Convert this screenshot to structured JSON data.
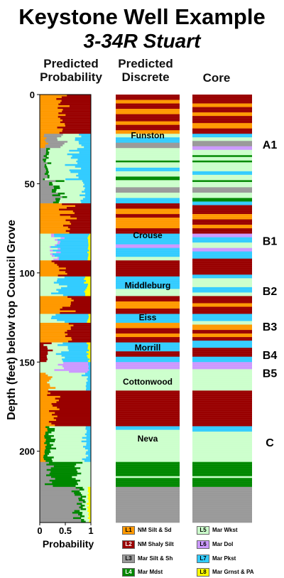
{
  "title": "Keystone Well Example",
  "subtitle": "3-34R Stuart",
  "chart_data": {
    "type": "strip-log",
    "y_label": "Depth (feet) below top Council Grove",
    "y_ticks": [
      0,
      50,
      100,
      150,
      200
    ],
    "y_range": [
      0,
      240
    ],
    "x_label": "Probability",
    "x_ticks": [
      "0",
      "0.5",
      "1"
    ],
    "x_range": [
      0,
      1
    ],
    "columns": [
      "Predicted Probability",
      "Predicted Discrete",
      "Core"
    ],
    "classes": [
      {
        "code": "L1",
        "name": "NM Silt & Sd",
        "color": "#FF9900",
        "text_color": "#000000"
      },
      {
        "code": "L2",
        "name": "NM Shaly Silt",
        "color": "#990000",
        "text_color": "#FFFFFF"
      },
      {
        "code": "L3",
        "name": "Mar Silt & Sh",
        "color": "#999999",
        "text_color": "#000000"
      },
      {
        "code": "L4",
        "name": "Mar Mdst",
        "color": "#008800",
        "text_color": "#FFFFFF"
      },
      {
        "code": "L5",
        "name": "Mar Wkst",
        "color": "#CCFFCC",
        "text_color": "#000000"
      },
      {
        "code": "L6",
        "name": "Mar Dol",
        "color": "#CC99FF",
        "text_color": "#000000"
      },
      {
        "code": "L7",
        "name": "Mar Pkst",
        "color": "#33CCFF",
        "text_color": "#000000"
      },
      {
        "code": "L8",
        "name": "Mar Grnst & PA",
        "color": "#FFFF00",
        "text_color": "#000000"
      }
    ],
    "formations": [
      {
        "name": "Funston",
        "depth": 23
      },
      {
        "name": "Crouse",
        "depth": 79
      },
      {
        "name": "Middleburg",
        "depth": 107
      },
      {
        "name": "Eiss",
        "depth": 125
      },
      {
        "name": "Morrill",
        "depth": 142
      },
      {
        "name": "Cottonwood",
        "depth": 161
      },
      {
        "name": "Neva",
        "depth": 193
      }
    ],
    "zones": [
      {
        "label": "A1",
        "depth": 28
      },
      {
        "label": "B1",
        "depth": 82
      },
      {
        "label": "B2",
        "depth": 110
      },
      {
        "label": "B3",
        "depth": 130
      },
      {
        "label": "B4",
        "depth": 146
      },
      {
        "label": "B5",
        "depth": 156
      },
      {
        "label": "C",
        "depth": 195
      }
    ],
    "discrete_intervals": [
      {
        "top": 0,
        "base": 3,
        "class": "L2"
      },
      {
        "top": 3,
        "base": 5,
        "class": "L1"
      },
      {
        "top": 5,
        "base": 8,
        "class": "L2"
      },
      {
        "top": 8,
        "base": 11,
        "class": "L1"
      },
      {
        "top": 11,
        "base": 15,
        "class": "L2"
      },
      {
        "top": 15,
        "base": 17,
        "class": "L1"
      },
      {
        "top": 17,
        "base": 20,
        "class": "L2"
      },
      {
        "top": 20,
        "base": 22,
        "class": "L1"
      },
      {
        "top": 22,
        "base": 24,
        "class": "L5"
      },
      {
        "top": 24,
        "base": 27,
        "class": "L7"
      },
      {
        "top": 27,
        "base": 30,
        "class": "L3"
      },
      {
        "top": 30,
        "base": 37,
        "class": "L5"
      },
      {
        "top": 37,
        "base": 38,
        "class": "L4"
      },
      {
        "top": 38,
        "base": 41,
        "class": "L5"
      },
      {
        "top": 41,
        "base": 43,
        "class": "L7"
      },
      {
        "top": 43,
        "base": 46,
        "class": "L5"
      },
      {
        "top": 46,
        "base": 48,
        "class": "L4"
      },
      {
        "top": 48,
        "base": 52,
        "class": "L5"
      },
      {
        "top": 52,
        "base": 55,
        "class": "L3"
      },
      {
        "top": 55,
        "base": 58,
        "class": "L5"
      },
      {
        "top": 58,
        "base": 61,
        "class": "L7"
      },
      {
        "top": 61,
        "base": 64,
        "class": "L2"
      },
      {
        "top": 64,
        "base": 67,
        "class": "L1"
      },
      {
        "top": 67,
        "base": 69,
        "class": "L2"
      },
      {
        "top": 69,
        "base": 75,
        "class": "L1"
      },
      {
        "top": 75,
        "base": 78,
        "class": "L2"
      },
      {
        "top": 78,
        "base": 84,
        "class": "L7"
      },
      {
        "top": 84,
        "base": 86,
        "class": "L6"
      },
      {
        "top": 86,
        "base": 91,
        "class": "L7"
      },
      {
        "top": 91,
        "base": 93,
        "class": "L5"
      },
      {
        "top": 93,
        "base": 102,
        "class": "L2"
      },
      {
        "top": 102,
        "base": 106,
        "class": "L7"
      },
      {
        "top": 106,
        "base": 109,
        "class": "L7"
      },
      {
        "top": 109,
        "base": 113,
        "class": "L5"
      },
      {
        "top": 113,
        "base": 116,
        "class": "L2"
      },
      {
        "top": 116,
        "base": 120,
        "class": "L1"
      },
      {
        "top": 120,
        "base": 123,
        "class": "L2"
      },
      {
        "top": 123,
        "base": 128,
        "class": "L7"
      },
      {
        "top": 128,
        "base": 131,
        "class": "L1"
      },
      {
        "top": 131,
        "base": 134,
        "class": "L2"
      },
      {
        "top": 134,
        "base": 136,
        "class": "L1"
      },
      {
        "top": 136,
        "base": 139,
        "class": "L2"
      },
      {
        "top": 139,
        "base": 144,
        "class": "L7"
      },
      {
        "top": 144,
        "base": 147,
        "class": "L2"
      },
      {
        "top": 147,
        "base": 150,
        "class": "L7"
      },
      {
        "top": 150,
        "base": 154,
        "class": "L6"
      },
      {
        "top": 154,
        "base": 156,
        "class": "L5"
      },
      {
        "top": 156,
        "base": 166,
        "class": "L5"
      },
      {
        "top": 166,
        "base": 186,
        "class": "L2"
      },
      {
        "top": 186,
        "base": 188,
        "class": "L7"
      },
      {
        "top": 188,
        "base": 206,
        "class": "L5"
      },
      {
        "top": 206,
        "base": 214,
        "class": "L4"
      },
      {
        "top": 214,
        "base": 215,
        "class": "L5"
      },
      {
        "top": 215,
        "base": 220,
        "class": "L4"
      },
      {
        "top": 220,
        "base": 240,
        "class": "L3"
      }
    ],
    "core_intervals": [
      {
        "top": 0,
        "base": 5,
        "class": "L2"
      },
      {
        "top": 5,
        "base": 7,
        "class": "L1"
      },
      {
        "top": 7,
        "base": 10,
        "class": "L2"
      },
      {
        "top": 10,
        "base": 12,
        "class": "L1"
      },
      {
        "top": 12,
        "base": 16,
        "class": "L2"
      },
      {
        "top": 16,
        "base": 19,
        "class": "L1"
      },
      {
        "top": 19,
        "base": 22,
        "class": "L2"
      },
      {
        "top": 22,
        "base": 24,
        "class": "L7"
      },
      {
        "top": 24,
        "base": 26,
        "class": "L5"
      },
      {
        "top": 26,
        "base": 29,
        "class": "L3"
      },
      {
        "top": 29,
        "base": 31,
        "class": "L6"
      },
      {
        "top": 31,
        "base": 34,
        "class": "L5"
      },
      {
        "top": 34,
        "base": 35,
        "class": "L4"
      },
      {
        "top": 35,
        "base": 37,
        "class": "L5"
      },
      {
        "top": 37,
        "base": 38,
        "class": "L4"
      },
      {
        "top": 38,
        "base": 43,
        "class": "L5"
      },
      {
        "top": 43,
        "base": 45,
        "class": "L7"
      },
      {
        "top": 45,
        "base": 48,
        "class": "L5"
      },
      {
        "top": 48,
        "base": 49,
        "class": "L4"
      },
      {
        "top": 49,
        "base": 52,
        "class": "L5"
      },
      {
        "top": 52,
        "base": 55,
        "class": "L3"
      },
      {
        "top": 55,
        "base": 58,
        "class": "L5"
      },
      {
        "top": 58,
        "base": 60,
        "class": "L4"
      },
      {
        "top": 60,
        "base": 62,
        "class": "L7"
      },
      {
        "top": 62,
        "base": 67,
        "class": "L2"
      },
      {
        "top": 67,
        "base": 70,
        "class": "L1"
      },
      {
        "top": 70,
        "base": 73,
        "class": "L2"
      },
      {
        "top": 73,
        "base": 75,
        "class": "L1"
      },
      {
        "top": 75,
        "base": 78,
        "class": "L2"
      },
      {
        "top": 78,
        "base": 80,
        "class": "L6"
      },
      {
        "top": 80,
        "base": 83,
        "class": "L7"
      },
      {
        "top": 83,
        "base": 86,
        "class": "L5"
      },
      {
        "top": 86,
        "base": 88,
        "class": "L6"
      },
      {
        "top": 88,
        "base": 92,
        "class": "L7"
      },
      {
        "top": 92,
        "base": 101,
        "class": "L2"
      },
      {
        "top": 101,
        "base": 103,
        "class": "L7"
      },
      {
        "top": 103,
        "base": 108,
        "class": "L5"
      },
      {
        "top": 108,
        "base": 111,
        "class": "L7"
      },
      {
        "top": 111,
        "base": 113,
        "class": "L5"
      },
      {
        "top": 113,
        "base": 117,
        "class": "L2"
      },
      {
        "top": 117,
        "base": 119,
        "class": "L1"
      },
      {
        "top": 119,
        "base": 123,
        "class": "L2"
      },
      {
        "top": 123,
        "base": 127,
        "class": "L7"
      },
      {
        "top": 127,
        "base": 129,
        "class": "L5"
      },
      {
        "top": 129,
        "base": 132,
        "class": "L1"
      },
      {
        "top": 132,
        "base": 134,
        "class": "L2"
      },
      {
        "top": 134,
        "base": 136,
        "class": "L1"
      },
      {
        "top": 136,
        "base": 138,
        "class": "L2"
      },
      {
        "top": 138,
        "base": 142,
        "class": "L7"
      },
      {
        "top": 142,
        "base": 147,
        "class": "L2"
      },
      {
        "top": 147,
        "base": 150,
        "class": "L7"
      },
      {
        "top": 150,
        "base": 154,
        "class": "L6"
      },
      {
        "top": 154,
        "base": 166,
        "class": "L5"
      },
      {
        "top": 166,
        "base": 186,
        "class": "L2"
      },
      {
        "top": 186,
        "base": 189,
        "class": "L7"
      },
      {
        "top": 189,
        "base": 206,
        "class": "L5"
      },
      {
        "top": 206,
        "base": 214,
        "class": "L4"
      },
      {
        "top": 214,
        "base": 215,
        "class": "L5"
      },
      {
        "top": 215,
        "base": 220,
        "class": "L4"
      },
      {
        "top": 220,
        "base": 240,
        "class": "L3"
      }
    ],
    "probability_samples_note_free": [],
    "probability_profile": [
      {
        "top": 0,
        "base": 22,
        "mix": {
          "L1": 0.45,
          "L2": 0.55
        }
      },
      {
        "top": 22,
        "base": 30,
        "mix": {
          "L1": 0.1,
          "L3": 0.3,
          "L5": 0.35,
          "L7": 0.25
        }
      },
      {
        "top": 30,
        "base": 48,
        "mix": {
          "L3": 0.1,
          "L4": 0.05,
          "L5": 0.5,
          "L7": 0.35
        }
      },
      {
        "top": 48,
        "base": 61,
        "mix": {
          "L3": 0.3,
          "L4": 0.1,
          "L5": 0.45,
          "L7": 0.15
        }
      },
      {
        "top": 61,
        "base": 78,
        "mix": {
          "L1": 0.55,
          "L2": 0.45
        }
      },
      {
        "top": 78,
        "base": 93,
        "mix": {
          "L5": 0.3,
          "L6": 0.05,
          "L7": 0.6,
          "L8": 0.05
        }
      },
      {
        "top": 93,
        "base": 102,
        "mix": {
          "L1": 0.4,
          "L2": 0.6
        }
      },
      {
        "top": 102,
        "base": 113,
        "mix": {
          "L5": 0.4,
          "L7": 0.5,
          "L8": 0.1
        }
      },
      {
        "top": 113,
        "base": 123,
        "mix": {
          "L1": 0.55,
          "L2": 0.45
        }
      },
      {
        "top": 123,
        "base": 128,
        "mix": {
          "L5": 0.3,
          "L7": 0.65,
          "L8": 0.05
        }
      },
      {
        "top": 128,
        "base": 139,
        "mix": {
          "L1": 0.6,
          "L2": 0.4
        }
      },
      {
        "top": 139,
        "base": 150,
        "mix": {
          "L2": 0.15,
          "L5": 0.25,
          "L7": 0.55,
          "L8": 0.05
        }
      },
      {
        "top": 150,
        "base": 156,
        "mix": {
          "L5": 0.45,
          "L6": 0.5,
          "L7": 0.05
        }
      },
      {
        "top": 156,
        "base": 166,
        "mix": {
          "L1": 0.2,
          "L5": 0.7,
          "L7": 0.1
        }
      },
      {
        "top": 166,
        "base": 186,
        "mix": {
          "L1": 0.25,
          "L2": 0.75
        }
      },
      {
        "top": 186,
        "base": 206,
        "mix": {
          "L1": 0.1,
          "L4": 0.15,
          "L5": 0.65,
          "L7": 0.1
        }
      },
      {
        "top": 206,
        "base": 220,
        "mix": {
          "L3": 0.2,
          "L4": 0.55,
          "L5": 0.25
        }
      },
      {
        "top": 220,
        "base": 240,
        "mix": {
          "L3": 0.75,
          "L4": 0.1,
          "L5": 0.1,
          "L8": 0.05
        }
      }
    ]
  }
}
